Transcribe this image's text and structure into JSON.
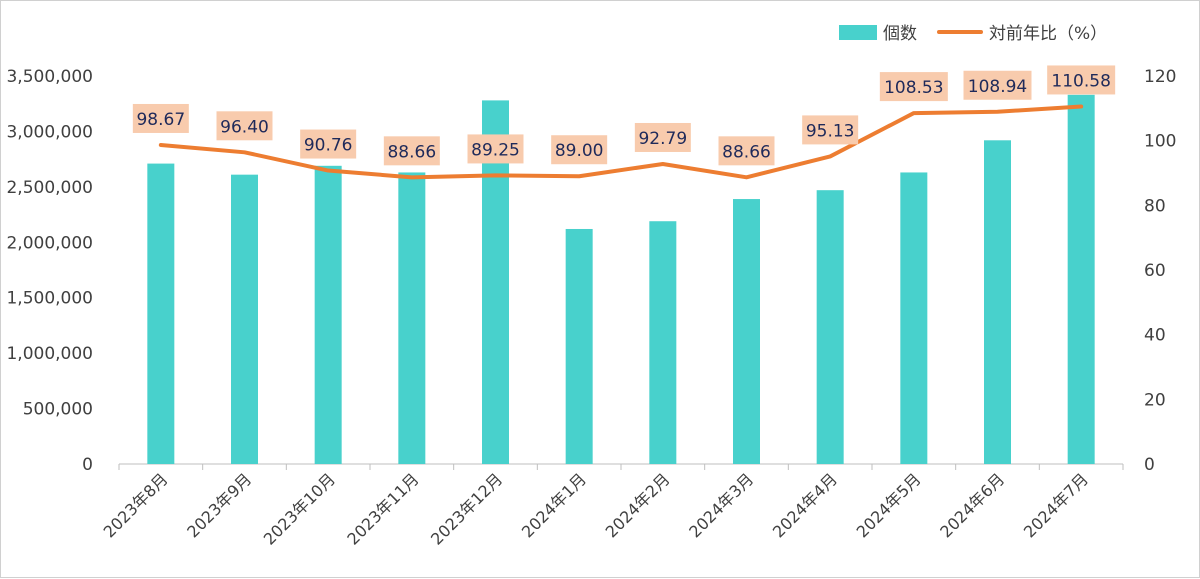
{
  "chart_data": {
    "type": "bar",
    "categories": [
      "2023年8月",
      "2023年9月",
      "2023年10月",
      "2023年11月",
      "2023年12月",
      "2024年1月",
      "2024年2月",
      "2024年3月",
      "2024年4月",
      "2024年5月",
      "2024年6月",
      "2024年7月"
    ],
    "series": [
      {
        "name": "個数",
        "type": "bar",
        "axis": "left",
        "color": "#48d1cc",
        "values": [
          2710000,
          2610000,
          2690000,
          2630000,
          3280000,
          2120000,
          2190000,
          2390000,
          2470000,
          2630000,
          2920000,
          3330000
        ]
      },
      {
        "name": "対前年比（%）",
        "type": "line",
        "axis": "right",
        "color": "#ed7d31",
        "values": [
          98.67,
          96.4,
          90.76,
          88.66,
          89.25,
          89.0,
          92.79,
          88.66,
          95.13,
          108.53,
          108.94,
          110.58
        ],
        "labels": [
          "98.67",
          "96.40",
          "90.76",
          "88.66",
          "89.25",
          "89.00",
          "92.79",
          "88.66",
          "95.13",
          "108.53",
          "108.94",
          "110.58"
        ]
      }
    ],
    "ylim_left": [
      0,
      3500000
    ],
    "yticks_left": [
      "0",
      "500,000",
      "1,000,000",
      "1,500,000",
      "2,000,000",
      "2,500,000",
      "3,000,000",
      "3,500,000"
    ],
    "ylim_right": [
      0,
      120
    ],
    "yticks_right": [
      "0",
      "20",
      "40",
      "60",
      "80",
      "100",
      "120"
    ],
    "data_label_bg": "#f8cbad",
    "legend_position": "top-right",
    "grid": false
  }
}
